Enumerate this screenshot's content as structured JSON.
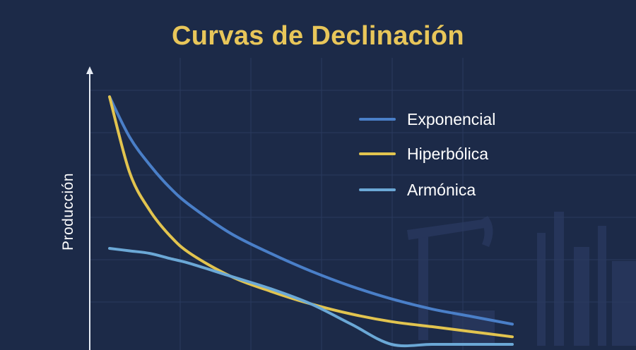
{
  "chart_data": {
    "type": "line",
    "title": "Curvas de Declinación",
    "xlabel": "",
    "ylabel": "Producción",
    "grid": true,
    "legend_position": "top-right",
    "x": [
      0,
      0.05,
      0.1,
      0.15,
      0.2,
      0.3,
      0.4,
      0.5,
      0.6,
      0.7,
      0.8,
      0.9,
      1.0
    ],
    "xlim": [
      0,
      1
    ],
    "ylim": [
      0,
      1
    ],
    "series": [
      {
        "name": "Exponencial",
        "color": "#4a7fc8",
        "values": [
          0.98,
          0.82,
          0.71,
          0.62,
          0.55,
          0.44,
          0.36,
          0.29,
          0.23,
          0.18,
          0.14,
          0.11,
          0.08
        ]
      },
      {
        "name": "Hiperbólica",
        "color": "#e2c44f",
        "values": [
          0.98,
          0.68,
          0.53,
          0.43,
          0.36,
          0.27,
          0.21,
          0.16,
          0.12,
          0.09,
          0.07,
          0.05,
          0.03
        ]
      },
      {
        "name": "Armónica",
        "color": "#6ba8d6",
        "values": [
          0.38,
          0.37,
          0.36,
          0.34,
          0.32,
          0.27,
          0.22,
          0.16,
          0.08,
          0.0,
          0.0,
          0.0,
          0.0
        ]
      }
    ]
  }
}
